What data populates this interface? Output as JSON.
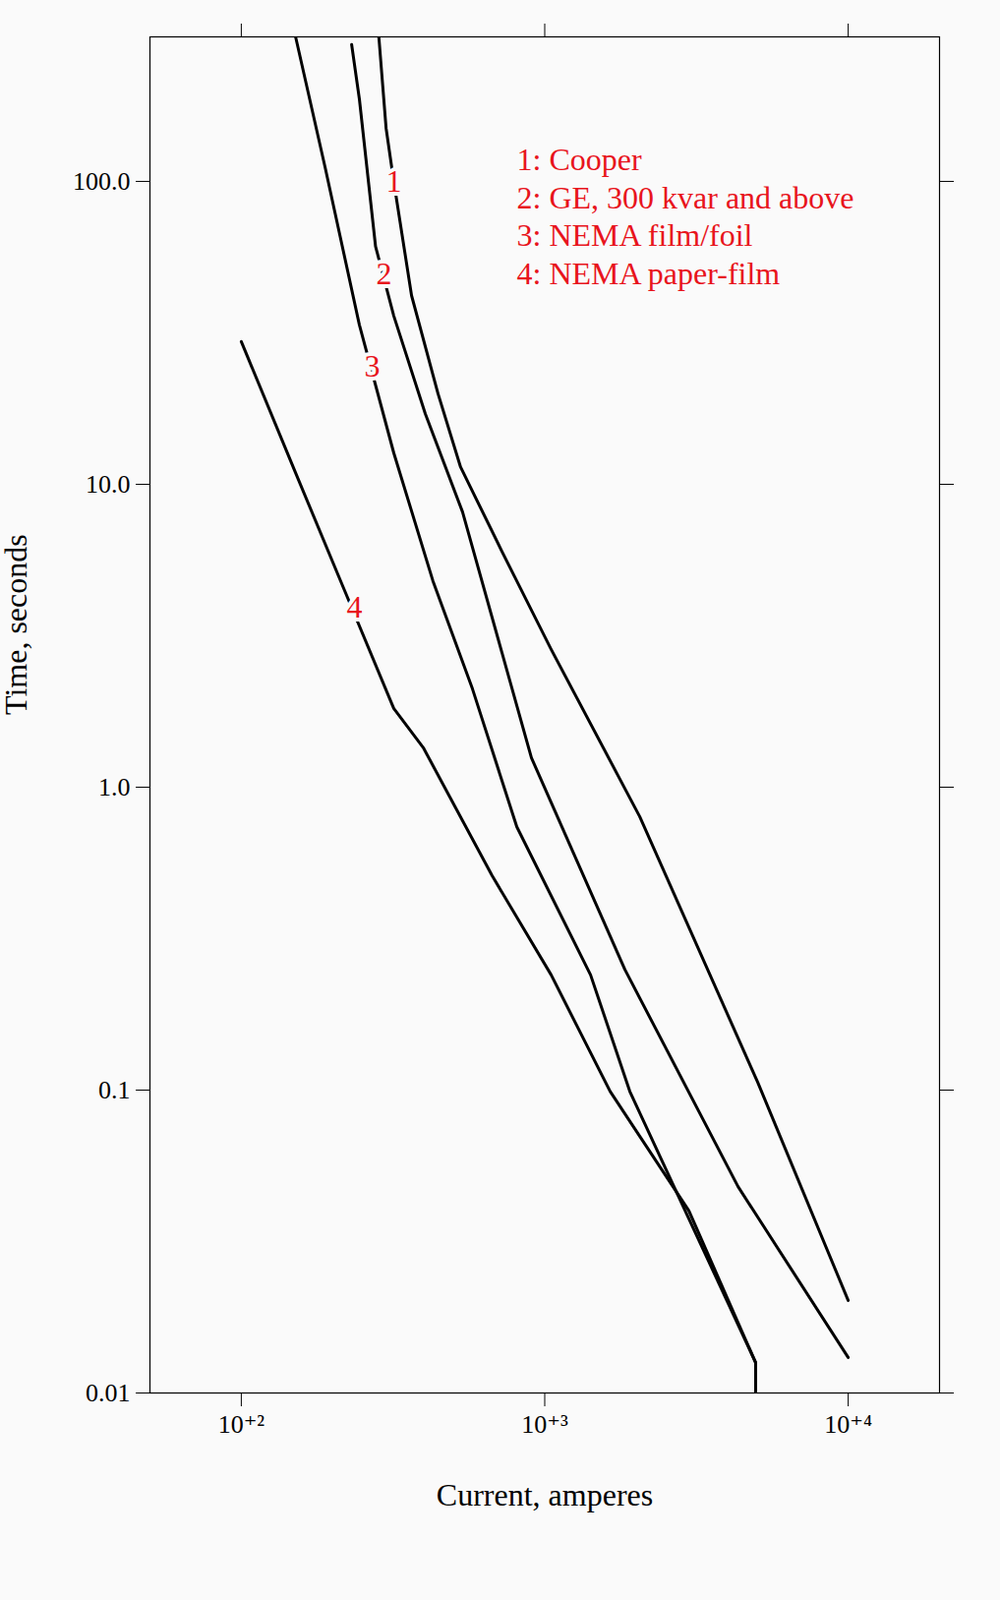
{
  "chart_data": {
    "type": "line",
    "x_label": "Current, amperes",
    "y_label": "Time, seconds",
    "log": true,
    "grid": false,
    "legend": "top-right",
    "xlim": [
      50,
      20000
    ],
    "ylim": [
      0.01,
      300
    ],
    "xticks": [
      {
        "value": 100,
        "label": "10⁺²"
      },
      {
        "value": 1000,
        "label": "10⁺³"
      },
      {
        "value": 10000,
        "label": "10⁺⁴"
      }
    ],
    "yticks": [
      0.01,
      0.1,
      {
        "value": 1,
        "label": "1.0"
      },
      {
        "value": 10,
        "label": "10.0"
      },
      {
        "value": 100,
        "label": "100.0"
      }
    ],
    "series": [
      {
        "name": "1: Cooper",
        "color": "#000000",
        "x": [
          284,
          300,
          318,
          364,
          445,
          528,
          723,
          1050,
          2056,
          5035,
          10000
        ],
        "values": [
          300,
          150,
          100,
          42,
          19.9,
          11.4,
          6.0,
          2.85,
          0.8,
          0.106,
          0.0202
        ]
      },
      {
        "name": "2: GE, 300 kvar and above",
        "color": "#000000",
        "x": [
          231,
          245,
          277,
          318,
          404,
          536,
          904,
          1837,
          4336,
          10000
        ],
        "values": [
          283,
          187,
          61,
          36,
          17.1,
          8.1,
          1.25,
          0.25,
          0.048,
          0.0131
        ]
      },
      {
        "name": "3: NEMA film/foil",
        "color": "#000000",
        "x": [
          151,
          189,
          245,
          318,
          428,
          578,
          809,
          1416,
          1907,
          4955,
          4955
        ],
        "values": [
          300,
          111,
          33.6,
          12.7,
          4.8,
          2.11,
          0.74,
          0.24,
          0.099,
          0.0126,
          0.01
        ]
      },
      {
        "name": "4: NEMA paper-film",
        "color": "#000000",
        "x": [
          100,
          151,
          219,
          318,
          398,
          671,
          1050,
          1643,
          2985,
          4955
        ],
        "values": [
          29.6,
          10.9,
          4.46,
          1.82,
          1.35,
          0.51,
          0.24,
          0.099,
          0.04,
          0.0126
        ]
      }
    ],
    "annotations": [
      {
        "text": "1",
        "x": 318,
        "y": 100
      },
      {
        "text": "2",
        "x": 295,
        "y": 49.5
      },
      {
        "text": "3",
        "x": 270,
        "y": 24.5
      },
      {
        "text": "4",
        "x": 236,
        "y": 3.93
      }
    ]
  }
}
